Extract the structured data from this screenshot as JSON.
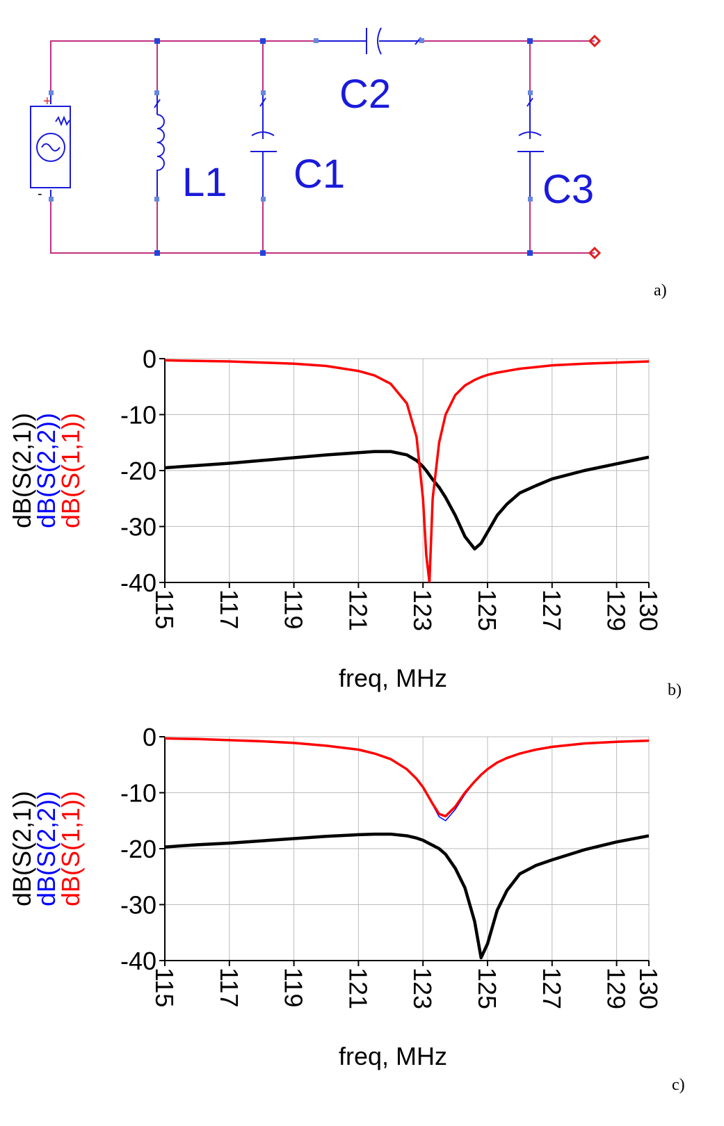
{
  "diagram": {
    "labels": [
      "L1",
      "C1",
      "C2",
      "C3"
    ],
    "source_polarity": [
      "+",
      "-"
    ]
  },
  "panel_labels": [
    "a)",
    "b)",
    "c)"
  ],
  "chart_data": [
    {
      "type": "line",
      "x_label": "freq, MHz",
      "x": [
        115,
        116,
        117,
        118,
        119,
        120,
        121,
        121.5,
        122,
        122.5,
        122.8,
        123,
        123.1,
        123.2,
        123.3,
        123.5,
        123.7,
        124,
        124.3,
        124.6,
        124.8,
        125,
        125.3,
        125.6,
        126,
        126.5,
        127,
        128,
        129,
        130
      ],
      "series": [
        {
          "name": "dB(S(2,1))",
          "color": "#000000",
          "values": [
            -19.5,
            -19.1,
            -18.7,
            -18.2,
            -17.7,
            -17.2,
            -16.8,
            -16.6,
            -16.6,
            -17.2,
            -18.2,
            -19.3,
            -20,
            -20.8,
            -21.6,
            -23,
            -24.8,
            -28,
            -31.8,
            -34,
            -33,
            -31,
            -28,
            -26,
            -24,
            -22.7,
            -21.5,
            -20,
            -18.8,
            -17.6
          ]
        },
        {
          "name": "dB(S(2,2))",
          "color": "#0000ff",
          "values": [
            -0.3,
            -0.4,
            -0.5,
            -0.7,
            -0.9,
            -1.3,
            -2.2,
            -3,
            -4.5,
            -8,
            -14,
            -26,
            -36,
            -40,
            -24,
            -15,
            -10,
            -6.5,
            -4.8,
            -3.8,
            -3.3,
            -2.9,
            -2.5,
            -2.2,
            -1.8,
            -1.5,
            -1.2,
            -0.9,
            -0.7,
            -0.5
          ]
        },
        {
          "name": "dB(S(1,1))",
          "color": "#ff0000",
          "values": [
            -0.3,
            -0.4,
            -0.5,
            -0.7,
            -0.9,
            -1.3,
            -2.2,
            -3,
            -4.5,
            -8,
            -14,
            -25,
            -35,
            -40,
            -25,
            -15,
            -10,
            -6.5,
            -4.8,
            -3.8,
            -3.3,
            -2.9,
            -2.5,
            -2.2,
            -1.8,
            -1.5,
            -1.2,
            -0.9,
            -0.7,
            -0.5
          ]
        }
      ],
      "xlim": [
        115,
        130
      ],
      "xticks": [
        115,
        117,
        119,
        121,
        123,
        125,
        127,
        129,
        130
      ],
      "ylim": [
        -40,
        0
      ],
      "yticks": [
        0,
        -10,
        -20,
        -30,
        -40
      ],
      "grid": true
    },
    {
      "type": "line",
      "x_label": "freq, MHz",
      "x": [
        115,
        116,
        117,
        118,
        119,
        120,
        121,
        121.5,
        122,
        122.5,
        122.8,
        123,
        123.1,
        123.2,
        123.3,
        123.5,
        123.7,
        124,
        124.3,
        124.6,
        124.8,
        125,
        125.3,
        125.6,
        126,
        126.5,
        127,
        128,
        129,
        130
      ],
      "series": [
        {
          "name": "dB(S(2,1))",
          "color": "#000000",
          "values": [
            -19.7,
            -19.3,
            -19,
            -18.6,
            -18.2,
            -17.8,
            -17.5,
            -17.4,
            -17.4,
            -17.7,
            -18.1,
            -18.5,
            -18.8,
            -19.1,
            -19.4,
            -20,
            -21,
            -23.5,
            -27,
            -33,
            -39.5,
            -37,
            -31,
            -27.5,
            -24.5,
            -23,
            -22,
            -20.2,
            -18.8,
            -17.7
          ]
        },
        {
          "name": "dB(S(2,2))",
          "color": "#0000ff",
          "values": [
            -0.3,
            -0.4,
            -0.6,
            -0.8,
            -1.1,
            -1.6,
            -2.3,
            -3,
            -4,
            -5.8,
            -7.5,
            -9,
            -10,
            -11.1,
            -12.2,
            -14.3,
            -15,
            -13,
            -10.3,
            -8.1,
            -6.9,
            -5.8,
            -4.6,
            -3.8,
            -3,
            -2.3,
            -1.8,
            -1.2,
            -0.9,
            -0.7
          ]
        },
        {
          "name": "dB(S(1,1))",
          "color": "#ff0000",
          "values": [
            -0.3,
            -0.4,
            -0.6,
            -0.8,
            -1.1,
            -1.6,
            -2.3,
            -3,
            -4,
            -5.8,
            -7.5,
            -9,
            -10,
            -11,
            -12,
            -13.8,
            -14.2,
            -12.5,
            -10,
            -8,
            -6.8,
            -5.8,
            -4.6,
            -3.8,
            -3,
            -2.3,
            -1.8,
            -1.2,
            -0.9,
            -0.7
          ]
        }
      ],
      "xlim": [
        115,
        130
      ],
      "xticks": [
        115,
        117,
        119,
        121,
        123,
        125,
        127,
        129,
        130
      ],
      "ylim": [
        -40,
        0
      ],
      "yticks": [
        0,
        -10,
        -20,
        -30,
        -40
      ],
      "grid": true
    }
  ]
}
